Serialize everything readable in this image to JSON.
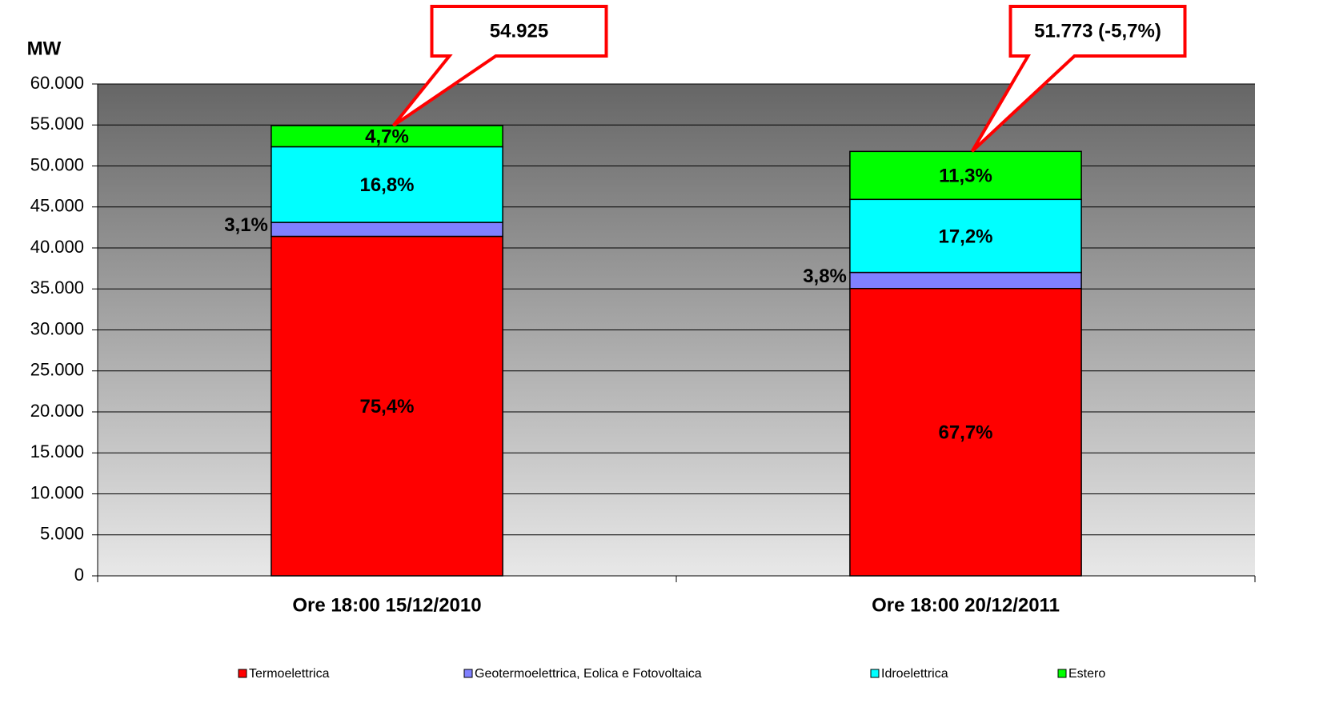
{
  "chart_data": {
    "type": "stacked_bar",
    "y_label": "MW",
    "categories": [
      "Ore  18:00  15/12/2010",
      "Ore  18:00  20/12/2011"
    ],
    "series": [
      {
        "name": "Termoelettrica",
        "color": "#ff0000",
        "values": [
          41413,
          35050
        ],
        "labels": [
          "75,4%",
          "67,7%"
        ]
      },
      {
        "name": "Geotermoelettrica, Eolica e Fotovoltaica",
        "color": "#8080ff",
        "values": [
          1703,
          1967
        ],
        "labels": [
          "3,1%",
          "3,8%"
        ]
      },
      {
        "name": "Idroelettrica",
        "color": "#00ffff",
        "values": [
          9227,
          8905
        ],
        "labels": [
          "16,8%",
          "17,2%"
        ]
      },
      {
        "name": "Estero",
        "color": "#00ff00",
        "values": [
          2581,
          5850
        ],
        "labels": [
          "4,7%",
          "11,3%"
        ]
      }
    ],
    "annotations": [
      "54.925",
      "51.773 (-5,7%)"
    ],
    "ylim": [
      0,
      60000
    ],
    "yticks": [
      0,
      {
        "value": 5000,
        "label": "5.000"
      },
      {
        "value": 10000,
        "label": "10.000"
      },
      {
        "value": 15000,
        "label": "15.000"
      },
      {
        "value": 20000,
        "label": "20.000"
      },
      {
        "value": 25000,
        "label": "25.000"
      },
      {
        "value": 30000,
        "label": "30.000"
      },
      {
        "value": 35000,
        "label": "35.000"
      },
      {
        "value": 40000,
        "label": "40.000"
      },
      {
        "value": 45000,
        "label": "45.000"
      },
      {
        "value": 50000,
        "label": "50.000"
      },
      {
        "value": 55000,
        "label": "55.000"
      },
      {
        "value": 60000,
        "label": "60.000"
      }
    ],
    "grid": true,
    "legend": "bottom"
  }
}
